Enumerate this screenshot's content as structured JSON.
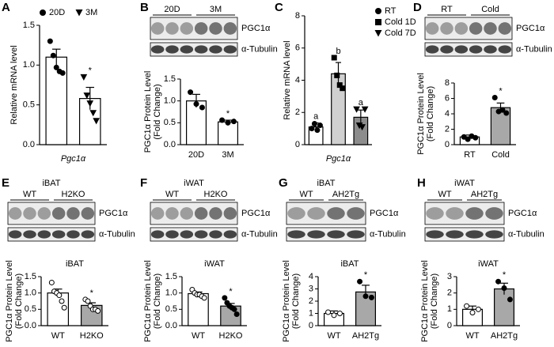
{
  "chart_data": [
    {
      "letter": "A",
      "type": "bar",
      "ylabel": "Relative mRNA level",
      "xlabel": "Pgc1α",
      "legend": [
        "20D",
        "3M"
      ],
      "markers": [
        "circle",
        "triangle"
      ],
      "marker_fill": [
        "#000000",
        "#000000"
      ],
      "values": [
        1.1,
        0.58
      ],
      "errors": [
        0.1,
        0.14
      ],
      "colors": [
        "#ffffff",
        "#ffffff"
      ],
      "points": [
        [
          1.3,
          1.12,
          0.97,
          0.92,
          0.9
        ],
        [
          0.85,
          0.62,
          0.52,
          0.4,
          0.3
        ]
      ],
      "annotations": [
        null,
        "*"
      ],
      "ylim": [
        0,
        1.5
      ],
      "yticks": [
        {
          "value": 0,
          "label": "0.0"
        },
        0.5,
        {
          "value": 1,
          "label": "1.0"
        },
        1.5
      ]
    },
    {
      "letter": "B",
      "type": "bar",
      "blot": {
        "groups": [
          "20D",
          "3M"
        ],
        "bands": [
          "PGC1α",
          "α-Tubulin"
        ]
      },
      "ylabel": [
        "PGC1α Protein Level",
        "(Fold Change)"
      ],
      "categories": [
        "20D",
        "3M"
      ],
      "markers": [
        "circle",
        "circle"
      ],
      "marker_fill": [
        "#000000",
        "#000000"
      ],
      "values": [
        1.0,
        0.52
      ],
      "errors": [
        0.15,
        0.04
      ],
      "colors": [
        "#ffffff",
        "#ffffff"
      ],
      "points": [
        [
          1.2,
          0.93,
          0.85
        ],
        [
          0.56,
          0.5,
          0.53
        ]
      ],
      "annotations": [
        null,
        "*"
      ],
      "ylim": [
        0,
        1.5
      ],
      "yticks": [
        {
          "value": 0,
          "label": "0.0"
        },
        0.5,
        {
          "value": 1,
          "label": "1.0"
        },
        1.5
      ]
    },
    {
      "letter": "C",
      "type": "bar",
      "ylabel": "Relative mRNA level",
      "xlabel": "Pgc1α",
      "legend": [
        "RT",
        "Cold 1D",
        "Cold 7D"
      ],
      "markers": [
        "circle",
        "square",
        "triangle"
      ],
      "marker_fill": [
        "#000000",
        "#000000",
        "#000000"
      ],
      "values": [
        1.1,
        4.4,
        1.7
      ],
      "errors": [
        0.25,
        0.7,
        0.45
      ],
      "colors": [
        "#ffffff",
        "#d0d0d0",
        "#8c8c8c"
      ],
      "points": [
        [
          1.0,
          1.3,
          0.9,
          1.2
        ],
        [
          5.4,
          4.3,
          3.7,
          3.5
        ],
        [
          2.2,
          1.2,
          1.1,
          2.2
        ]
      ],
      "annotations": [
        "a",
        "b",
        "a"
      ],
      "ylim": [
        0,
        8
      ],
      "yticks": [
        0,
        2,
        4,
        6,
        8
      ]
    },
    {
      "letter": "D",
      "type": "bar",
      "blot": {
        "groups": [
          "RT",
          "Cold"
        ],
        "bands": [
          "PGC1α",
          "α-Tubulin"
        ]
      },
      "ylabel": [
        "PGC1α Protein Level",
        "(Fold Change)"
      ],
      "categories": [
        "RT",
        "Cold"
      ],
      "markers": [
        "circle",
        "circle"
      ],
      "marker_fill": [
        "#000000",
        "#000000"
      ],
      "values": [
        1.0,
        4.8
      ],
      "errors": [
        0.25,
        0.6
      ],
      "colors": [
        "#ffffff",
        "#a8a8a8"
      ],
      "points": [
        [
          1.0,
          0.7,
          1.1,
          0.9
        ],
        [
          6.1,
          4.3,
          4.5,
          4.1
        ]
      ],
      "annotations": [
        null,
        "*"
      ],
      "ylim": [
        0,
        8
      ],
      "yticks": [
        0,
        2,
        4,
        6,
        8
      ]
    },
    {
      "letter": "E",
      "type": "bar",
      "blot": {
        "header": "iBAT",
        "groups": [
          "WT",
          "H2KO"
        ],
        "bands": [
          "PGC1α",
          "α-Tubulin"
        ]
      },
      "title": "iBAT",
      "ylabel": [
        "PGC1α Protein Level",
        "(Fold Change)"
      ],
      "categories": [
        "WT",
        "H2KO"
      ],
      "markers": [
        "circle",
        "circle"
      ],
      "marker_fill": [
        "#ffffff",
        "#ffffff"
      ],
      "values": [
        1.0,
        0.62
      ],
      "errors": [
        0.12,
        0.08
      ],
      "colors": [
        "#ffffff",
        "#a8a8a8"
      ],
      "points": [
        [
          1.32,
          1.05,
          1.0,
          0.93,
          0.75,
          0.55
        ],
        [
          0.8,
          0.75,
          0.6,
          0.5,
          0.5,
          0.45
        ]
      ],
      "annotations": [
        null,
        "*"
      ],
      "ylim": [
        0,
        1.5
      ],
      "yticks": [
        {
          "value": 0,
          "label": "0.0"
        },
        0.5,
        {
          "value": 1,
          "label": "1.0"
        },
        1.5
      ]
    },
    {
      "letter": "F",
      "type": "bar",
      "blot": {
        "header": "iWAT",
        "groups": [
          "WT",
          "H2KO"
        ],
        "bands": [
          "PGC1α",
          "α-Tubulin"
        ]
      },
      "title": "iWAT",
      "ylabel": [
        "PGC1α Protein Level",
        "(Fold Change)"
      ],
      "categories": [
        "WT",
        "H2KO"
      ],
      "markers": [
        "circle",
        "circle"
      ],
      "marker_fill": [
        "#ffffff",
        "#000000"
      ],
      "values": [
        0.98,
        0.6
      ],
      "errors": [
        0.05,
        0.08
      ],
      "colors": [
        "#ffffff",
        "#a8a8a8"
      ],
      "points": [
        [
          1.1,
          1.0,
          0.95,
          0.95,
          0.9,
          0.85
        ],
        [
          0.85,
          0.7,
          0.6,
          0.55,
          0.5,
          0.35
        ]
      ],
      "annotations": [
        null,
        "*"
      ],
      "ylim": [
        0,
        1.5
      ],
      "yticks": [
        {
          "value": 0,
          "label": "0.0"
        },
        0.5,
        {
          "value": 1,
          "label": "1.0"
        },
        1.5
      ]
    },
    {
      "letter": "G",
      "type": "bar",
      "blot": {
        "header": "iBAT",
        "groups": [
          "WT",
          "AH2Tg"
        ],
        "bands": [
          "PGC1α",
          "α-Tubulin"
        ]
      },
      "title": "iBAT",
      "ylabel": [
        "PGC1α Protein Level",
        "(Fold Change)"
      ],
      "categories": [
        "WT",
        "AH2Tg"
      ],
      "markers": [
        "circle",
        "circle"
      ],
      "marker_fill": [
        "#ffffff",
        "#000000"
      ],
      "values": [
        1.0,
        2.75
      ],
      "errors": [
        0.2,
        0.55
      ],
      "colors": [
        "#ffffff",
        "#a8a8a8"
      ],
      "points": [
        [
          1.1,
          0.85,
          1.0
        ],
        [
          3.6,
          2.4,
          2.3
        ]
      ],
      "annotations": [
        null,
        "*"
      ],
      "ylim": [
        0,
        4
      ],
      "yticks": [
        0,
        1,
        2,
        3,
        4
      ]
    },
    {
      "letter": "H",
      "type": "bar",
      "blot": {
        "header": "iWAT",
        "groups": [
          "WT",
          "AH2Tg"
        ],
        "bands": [
          "PGC1α",
          "α-Tubulin"
        ]
      },
      "title": "iWAT",
      "ylabel": [
        "PGC1α Protein Level",
        "(Fold Change)"
      ],
      "categories": [
        "WT",
        "AH2Tg"
      ],
      "markers": [
        "circle",
        "circle"
      ],
      "marker_fill": [
        "#ffffff",
        "#000000"
      ],
      "values": [
        1.0,
        2.25
      ],
      "errors": [
        0.2,
        0.35
      ],
      "colors": [
        "#ffffff",
        "#a8a8a8"
      ],
      "points": [
        [
          1.2,
          0.8,
          1.0
        ],
        [
          2.7,
          2.3,
          1.6
        ]
      ],
      "annotations": [
        null,
        "*"
      ],
      "ylim": [
        0,
        3
      ],
      "yticks": [
        0,
        1,
        2,
        3
      ]
    }
  ]
}
